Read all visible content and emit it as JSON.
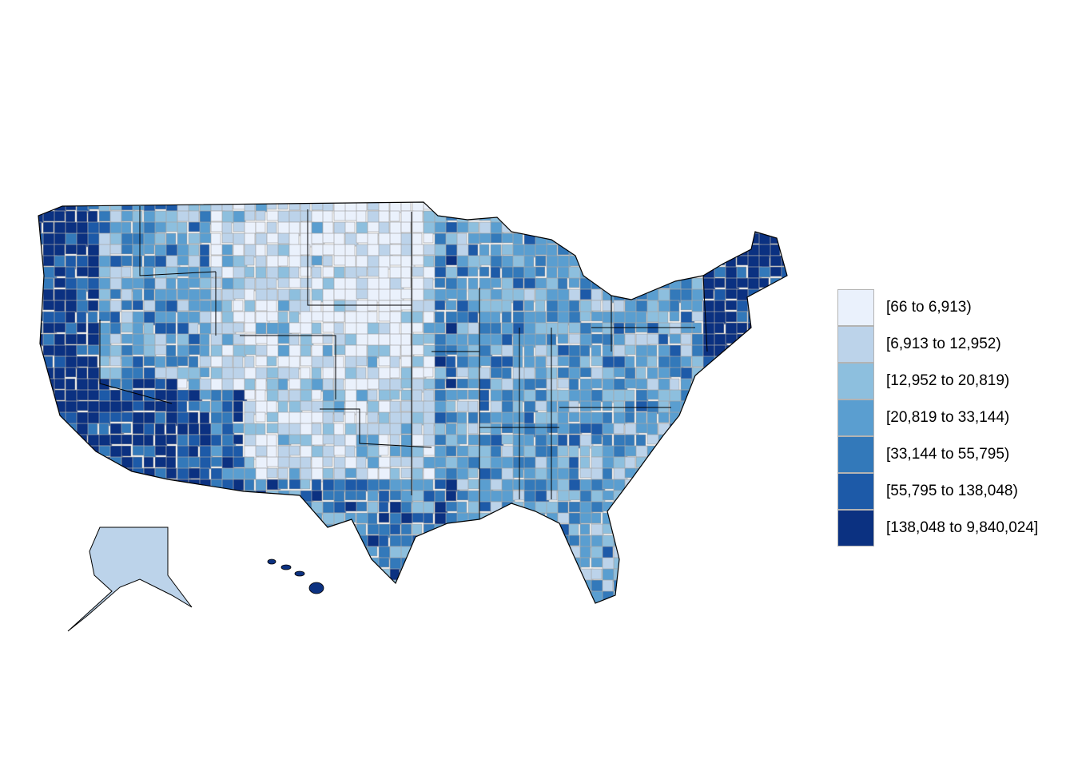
{
  "legend": {
    "title": "",
    "items": [
      {
        "label": "[66 to 6,913)",
        "color": "#eaf1fc"
      },
      {
        "label": "[6,913 to 12,952)",
        "color": "#bcd3ea"
      },
      {
        "label": "[12,952 to 20,819)",
        "color": "#8dbfde"
      },
      {
        "label": "[20,819 to 33,144)",
        "color": "#5a9ed0"
      },
      {
        "label": "[33,144 to 55,795)",
        "color": "#3379ba"
      },
      {
        "label": "[55,795 to 138,048)",
        "color": "#1d5aa8"
      },
      {
        "label": "[138,048 to 9,840,024]",
        "color": "#0b3181"
      }
    ]
  },
  "map": {
    "type": "choropleth",
    "geography": "US counties",
    "county_border_color": "#a6a6a6",
    "state_border_color": "#000000",
    "regions": [
      {
        "name": "west-coast",
        "class": 6
      },
      {
        "name": "nevada-arizona",
        "class": 5
      },
      {
        "name": "northern-plains",
        "class": 0
      },
      {
        "name": "southern-plains",
        "class": 1
      },
      {
        "name": "midwest",
        "class": 3
      },
      {
        "name": "southeast",
        "class": 3
      },
      {
        "name": "northeast",
        "class": 6
      },
      {
        "name": "alaska",
        "class": 1
      },
      {
        "name": "hawaii",
        "class": 6
      }
    ]
  }
}
